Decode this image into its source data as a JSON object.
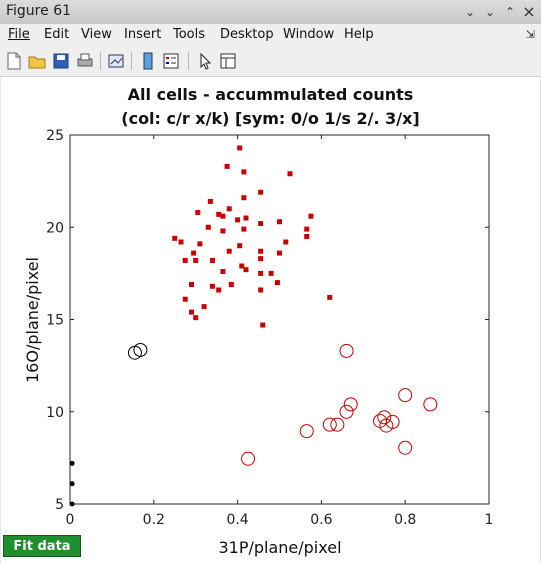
{
  "window": {
    "title": "Figure 61"
  },
  "menu": [
    "File",
    "Edit",
    "View",
    "Insert",
    "Tools",
    "Desktop",
    "Window",
    "Help"
  ],
  "toolbar_icons": [
    "new-file-icon",
    "open-folder-icon",
    "save-icon",
    "print-icon",
    "link-plot-icon",
    "colorbar-icon",
    "legend-icon",
    "pointer-icon",
    "plot-browser-icon"
  ],
  "plot": {
    "title_line1": "All cells - accummulated counts",
    "title_line2": "(col: c/r x/k) [sym: 0/o 1/s 2/. 3/x]"
  },
  "fit_button": "Fit data",
  "chart_data": {
    "type": "scatter",
    "title": "All cells - accummulated counts (col: c/r x/k) [sym: 0/o 1/s 2/. 3/x]",
    "xlabel": "31P/plane/pixel",
    "ylabel": "16O/plane/pixel",
    "xlim": [
      0,
      1
    ],
    "ylim": [
      5,
      25
    ],
    "xticks": [
      0,
      0.2,
      0.4,
      0.6,
      0.8,
      1
    ],
    "yticks": [
      5,
      10,
      15,
      20,
      25
    ],
    "grid": false,
    "series": [
      {
        "marker": "square",
        "color": "#cc0000",
        "points": [
          [
            0.405,
            24.3
          ],
          [
            0.375,
            23.3
          ],
          [
            0.415,
            23.0
          ],
          [
            0.525,
            22.9
          ],
          [
            0.455,
            21.9
          ],
          [
            0.415,
            21.6
          ],
          [
            0.335,
            21.4
          ],
          [
            0.38,
            21.0
          ],
          [
            0.305,
            20.8
          ],
          [
            0.355,
            20.7
          ],
          [
            0.365,
            20.6
          ],
          [
            0.42,
            20.5
          ],
          [
            0.575,
            20.6
          ],
          [
            0.4,
            20.4
          ],
          [
            0.5,
            20.3
          ],
          [
            0.455,
            20.2
          ],
          [
            0.33,
            20.0
          ],
          [
            0.565,
            19.9
          ],
          [
            0.415,
            19.9
          ],
          [
            0.365,
            19.8
          ],
          [
            0.565,
            19.5
          ],
          [
            0.25,
            19.4
          ],
          [
            0.265,
            19.2
          ],
          [
            0.515,
            19.2
          ],
          [
            0.31,
            19.1
          ],
          [
            0.405,
            19.0
          ],
          [
            0.455,
            18.7
          ],
          [
            0.38,
            18.7
          ],
          [
            0.295,
            18.6
          ],
          [
            0.5,
            18.6
          ],
          [
            0.275,
            18.2
          ],
          [
            0.3,
            18.2
          ],
          [
            0.34,
            18.2
          ],
          [
            0.455,
            18.3
          ],
          [
            0.41,
            17.9
          ],
          [
            0.365,
            17.6
          ],
          [
            0.42,
            17.7
          ],
          [
            0.455,
            17.5
          ],
          [
            0.48,
            17.5
          ],
          [
            0.495,
            17.0
          ],
          [
            0.29,
            16.9
          ],
          [
            0.34,
            16.8
          ],
          [
            0.385,
            16.9
          ],
          [
            0.355,
            16.6
          ],
          [
            0.455,
            16.6
          ],
          [
            0.62,
            16.2
          ],
          [
            0.275,
            16.1
          ],
          [
            0.32,
            15.7
          ],
          [
            0.29,
            15.4
          ],
          [
            0.3,
            15.1
          ],
          [
            0.46,
            14.7
          ]
        ]
      },
      {
        "marker": "circle",
        "color": "#000000",
        "points": [
          [
            0.155,
            13.2
          ],
          [
            0.168,
            13.35
          ]
        ]
      },
      {
        "marker": "circle",
        "color": "#cc0000",
        "points": [
          [
            0.66,
            13.3
          ],
          [
            0.8,
            10.9
          ],
          [
            0.86,
            10.4
          ],
          [
            0.67,
            10.4
          ],
          [
            0.66,
            10.0
          ],
          [
            0.75,
            9.7
          ],
          [
            0.74,
            9.5
          ],
          [
            0.77,
            9.45
          ],
          [
            0.755,
            9.25
          ],
          [
            0.62,
            9.3
          ],
          [
            0.638,
            9.3
          ],
          [
            0.565,
            8.95
          ],
          [
            0.8,
            8.05
          ],
          [
            0.425,
            7.45
          ]
        ]
      },
      {
        "marker": "dot",
        "color": "#000000",
        "points": [
          [
            0.005,
            7.2
          ],
          [
            0.005,
            6.1
          ],
          [
            0.005,
            5.0
          ]
        ]
      }
    ]
  }
}
